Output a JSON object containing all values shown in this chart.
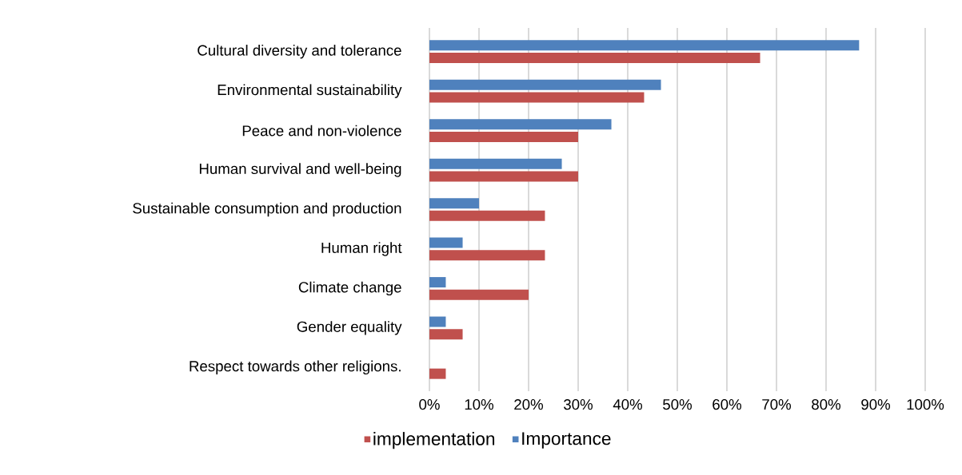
{
  "chart_data": {
    "type": "bar",
    "orientation": "horizontal",
    "categories": [
      "Cultural diversity and tolerance",
      "Environmental sustainability",
      "Peace and non-violence",
      "Human survival and well-being",
      "Sustainable consumption and production",
      "Human right",
      "Climate change",
      "Gender equality",
      "Respect towards other religions."
    ],
    "series": [
      {
        "name": "implementation",
        "color": "#c0504d",
        "values": [
          66.7,
          43.3,
          30,
          30,
          23.3,
          23.3,
          20,
          6.7,
          3.3
        ]
      },
      {
        "name": "Importance",
        "color": "#4f81bd",
        "values": [
          86.7,
          46.7,
          36.7,
          26.7,
          10,
          6.7,
          3.3,
          3.3,
          0
        ]
      }
    ],
    "xlim": [
      0,
      100
    ],
    "xticks": [
      {
        "value": 0,
        "label": "0%"
      },
      {
        "value": 10,
        "label": "10%"
      },
      {
        "value": 20,
        "label": "20%"
      },
      {
        "value": 30,
        "label": "30%"
      },
      {
        "value": 40,
        "label": "40%"
      },
      {
        "value": 50,
        "label": "50%"
      },
      {
        "value": 60,
        "label": "60%"
      },
      {
        "value": 70,
        "label": "70%"
      },
      {
        "value": 80,
        "label": "80%"
      },
      {
        "value": 90,
        "label": "90%"
      },
      {
        "value": 100,
        "label": "100%"
      }
    ],
    "grid": "x",
    "legend": "bottom"
  }
}
